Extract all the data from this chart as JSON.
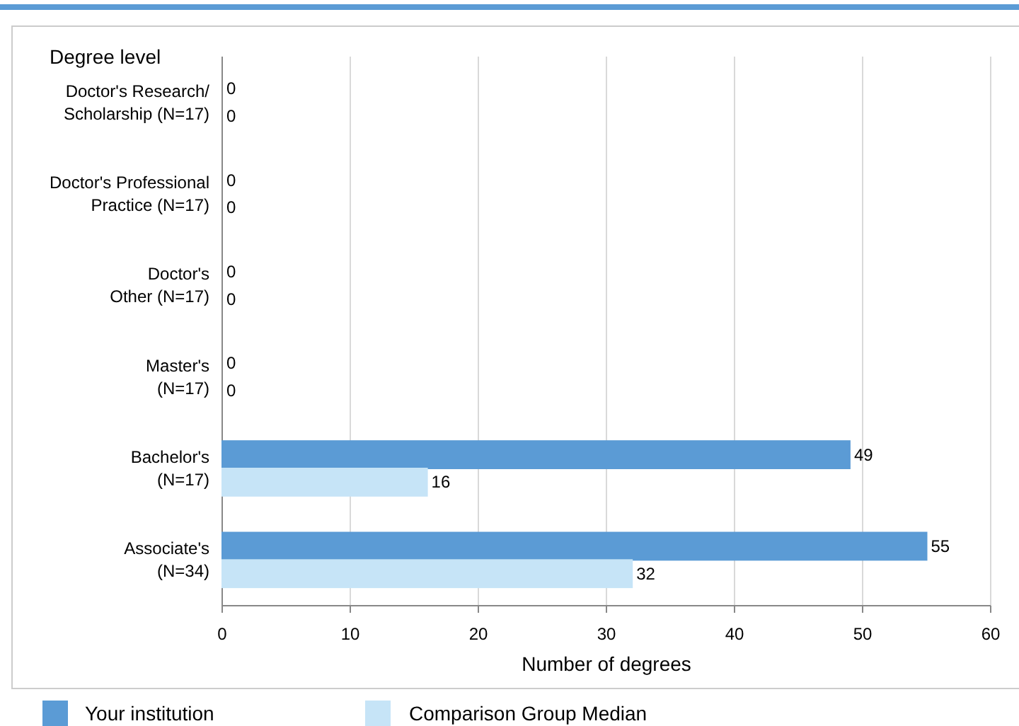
{
  "chart_data": {
    "type": "bar",
    "orientation": "horizontal",
    "ylabel": "Degree level",
    "xlabel": "Number of degrees",
    "categories": [
      "Doctor's Research/\nScholarship (N=17)",
      "Doctor's Professional\nPractice (N=17)",
      "Doctor's\nOther (N=17)",
      "Master's\n(N=17)",
      "Bachelor's\n(N=17)",
      "Associate's\n(N=34)"
    ],
    "series": [
      {
        "name": "Your institution",
        "color": "#5b9bd5",
        "values": [
          0,
          0,
          0,
          0,
          49,
          55
        ]
      },
      {
        "name": "Comparison Group Median",
        "color": "#c6e4f7",
        "values": [
          0,
          0,
          0,
          0,
          16,
          32
        ]
      }
    ],
    "xlim": [
      0,
      60
    ],
    "xticks": [
      0,
      10,
      20,
      30,
      40,
      50,
      60
    ],
    "grid": "x",
    "data_labels": true,
    "legend": "bottom"
  }
}
